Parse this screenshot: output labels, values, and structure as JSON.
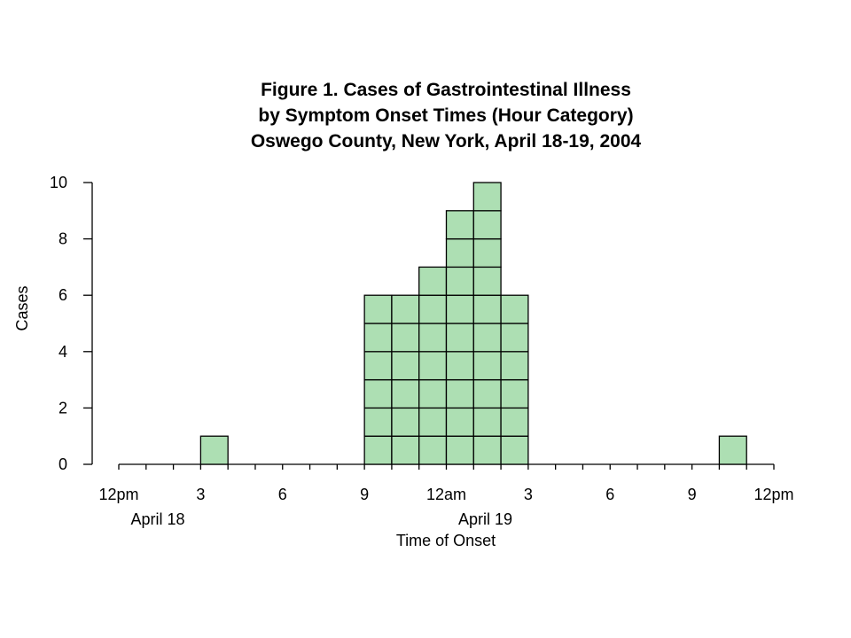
{
  "chart_data": {
    "type": "bar",
    "title_lines": [
      "Figure 1. Cases of Gastrointestinal Illness",
      "by Symptom Onset Times (Hour Category)",
      "Oswego County, New York, April 18-19, 2004"
    ],
    "ylabel": "Cases",
    "xlabel": "Time of Onset",
    "ylim": [
      0,
      10
    ],
    "y_ticks": [
      0,
      2,
      4,
      6,
      8,
      10
    ],
    "x_ticks": [
      "12pm",
      "3",
      "6",
      "9",
      "12am",
      "3",
      "6",
      "9",
      "12pm"
    ],
    "date_labels": [
      {
        "label": "April 18",
        "under_tick": 0
      },
      {
        "label": "April 19",
        "under_tick": 4
      }
    ],
    "bin_hours": 1,
    "bins": [
      {
        "start": "April 18 12pm",
        "count": 0
      },
      {
        "start": "April 18 1pm",
        "count": 0
      },
      {
        "start": "April 18 2pm",
        "count": 0
      },
      {
        "start": "April 18 3pm",
        "count": 1
      },
      {
        "start": "April 18 4pm",
        "count": 0
      },
      {
        "start": "April 18 5pm",
        "count": 0
      },
      {
        "start": "April 18 6pm",
        "count": 0
      },
      {
        "start": "April 18 7pm",
        "count": 0
      },
      {
        "start": "April 18 8pm",
        "count": 0
      },
      {
        "start": "April 18 9pm",
        "count": 6
      },
      {
        "start": "April 18 10pm",
        "count": 6
      },
      {
        "start": "April 18 11pm",
        "count": 7
      },
      {
        "start": "April 19 12am",
        "count": 9
      },
      {
        "start": "April 19 1am",
        "count": 10
      },
      {
        "start": "April 19 2am",
        "count": 6
      },
      {
        "start": "April 19 3am",
        "count": 0
      },
      {
        "start": "April 19 4am",
        "count": 0
      },
      {
        "start": "April 19 5am",
        "count": 0
      },
      {
        "start": "April 19 6am",
        "count": 0
      },
      {
        "start": "April 19 7am",
        "count": 0
      },
      {
        "start": "April 19 8am",
        "count": 0
      },
      {
        "start": "April 19 9am",
        "count": 0
      },
      {
        "start": "April 19 10am",
        "count": 1
      },
      {
        "start": "April 19 11am",
        "count": 0
      }
    ],
    "bar_color": "#addfb3",
    "grid": false
  }
}
